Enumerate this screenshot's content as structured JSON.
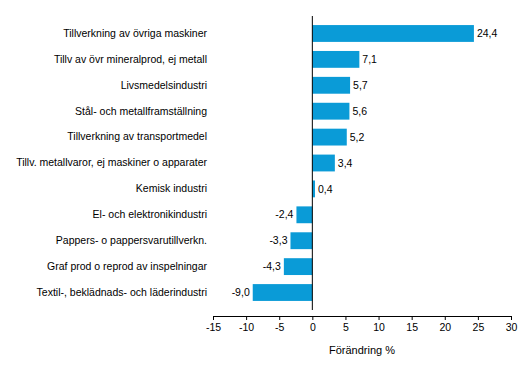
{
  "chart_data": {
    "type": "bar",
    "orientation": "horizontal",
    "x_label": "Förändring %",
    "categories": [
      "Tillverkning av övriga maskiner",
      "Tillv av övr mineralprod, ej metall",
      "Livsmedelsindustri",
      "Stål- och metallframställning",
      "Tillverkning av transportmedel",
      "Tillv. metallvaror, ej maskiner o apparater",
      "Kemisk industri",
      "El- och elektronikindustri",
      "Pappers- o pappersvarutillverkn.",
      "Graf prod o reprod av inspelningar",
      "Textil-, beklädnads- och läderindustri"
    ],
    "values": [
      24.4,
      7.1,
      5.7,
      5.6,
      5.2,
      3.4,
      0.4,
      -2.4,
      -3.3,
      -4.3,
      -9.0
    ],
    "value_labels": [
      "24,4",
      "7,1",
      "5,7",
      "5,6",
      "5,2",
      "3,4",
      "0,4",
      "-2,4",
      "-3,3",
      "-4,3",
      "-9,0"
    ],
    "data_labels": true,
    "color": "#0a9bd7",
    "xlim": [
      -15,
      30
    ],
    "xticks": [
      -15,
      -10,
      -5,
      0,
      5,
      10,
      15,
      20,
      25,
      30
    ],
    "grid": false
  }
}
